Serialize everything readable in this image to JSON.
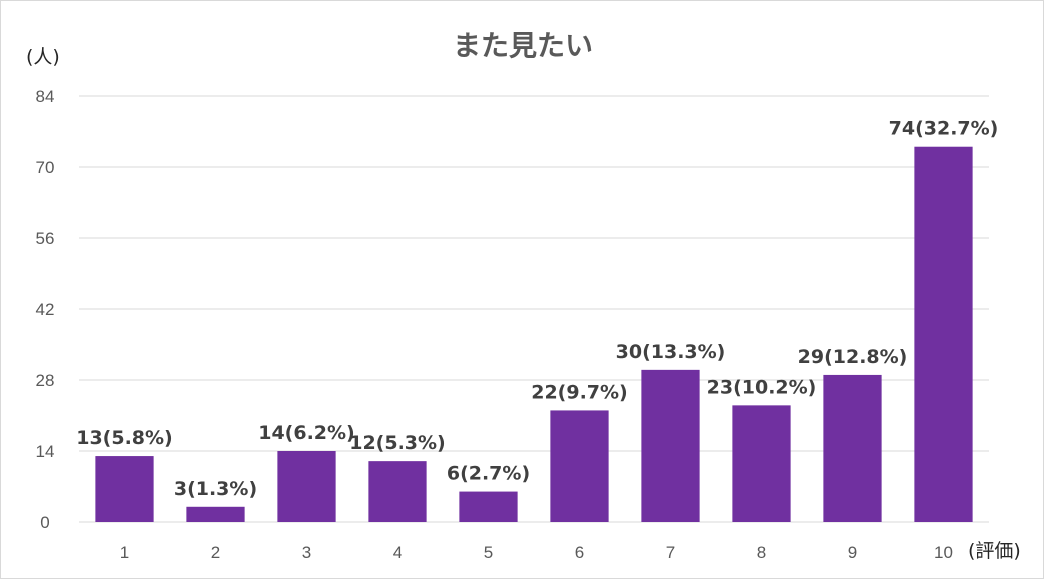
{
  "chart_data": {
    "type": "bar",
    "title": "また見たい",
    "ylabel": "(人)",
    "xlabel": "(評価)",
    "categories": [
      "1",
      "2",
      "3",
      "4",
      "5",
      "6",
      "7",
      "8",
      "9",
      "10"
    ],
    "values": [
      13,
      3,
      14,
      12,
      6,
      22,
      30,
      23,
      29,
      74
    ],
    "data_labels": [
      "13(5.8%)",
      "3(1.3%)",
      "14(6.2%)",
      "12(5.3%)",
      "6(2.7%)",
      "22(9.7%)",
      "30(13.3%)",
      "23(10.2%)",
      "29(12.8%)",
      "74(32.7%)"
    ],
    "yticks": [
      0,
      14,
      28,
      42,
      56,
      70,
      84
    ],
    "ylim": [
      0,
      84
    ],
    "grid": true,
    "legend": "none",
    "bar_color": "#7030a0",
    "grid_color": "#d9d9d9"
  }
}
